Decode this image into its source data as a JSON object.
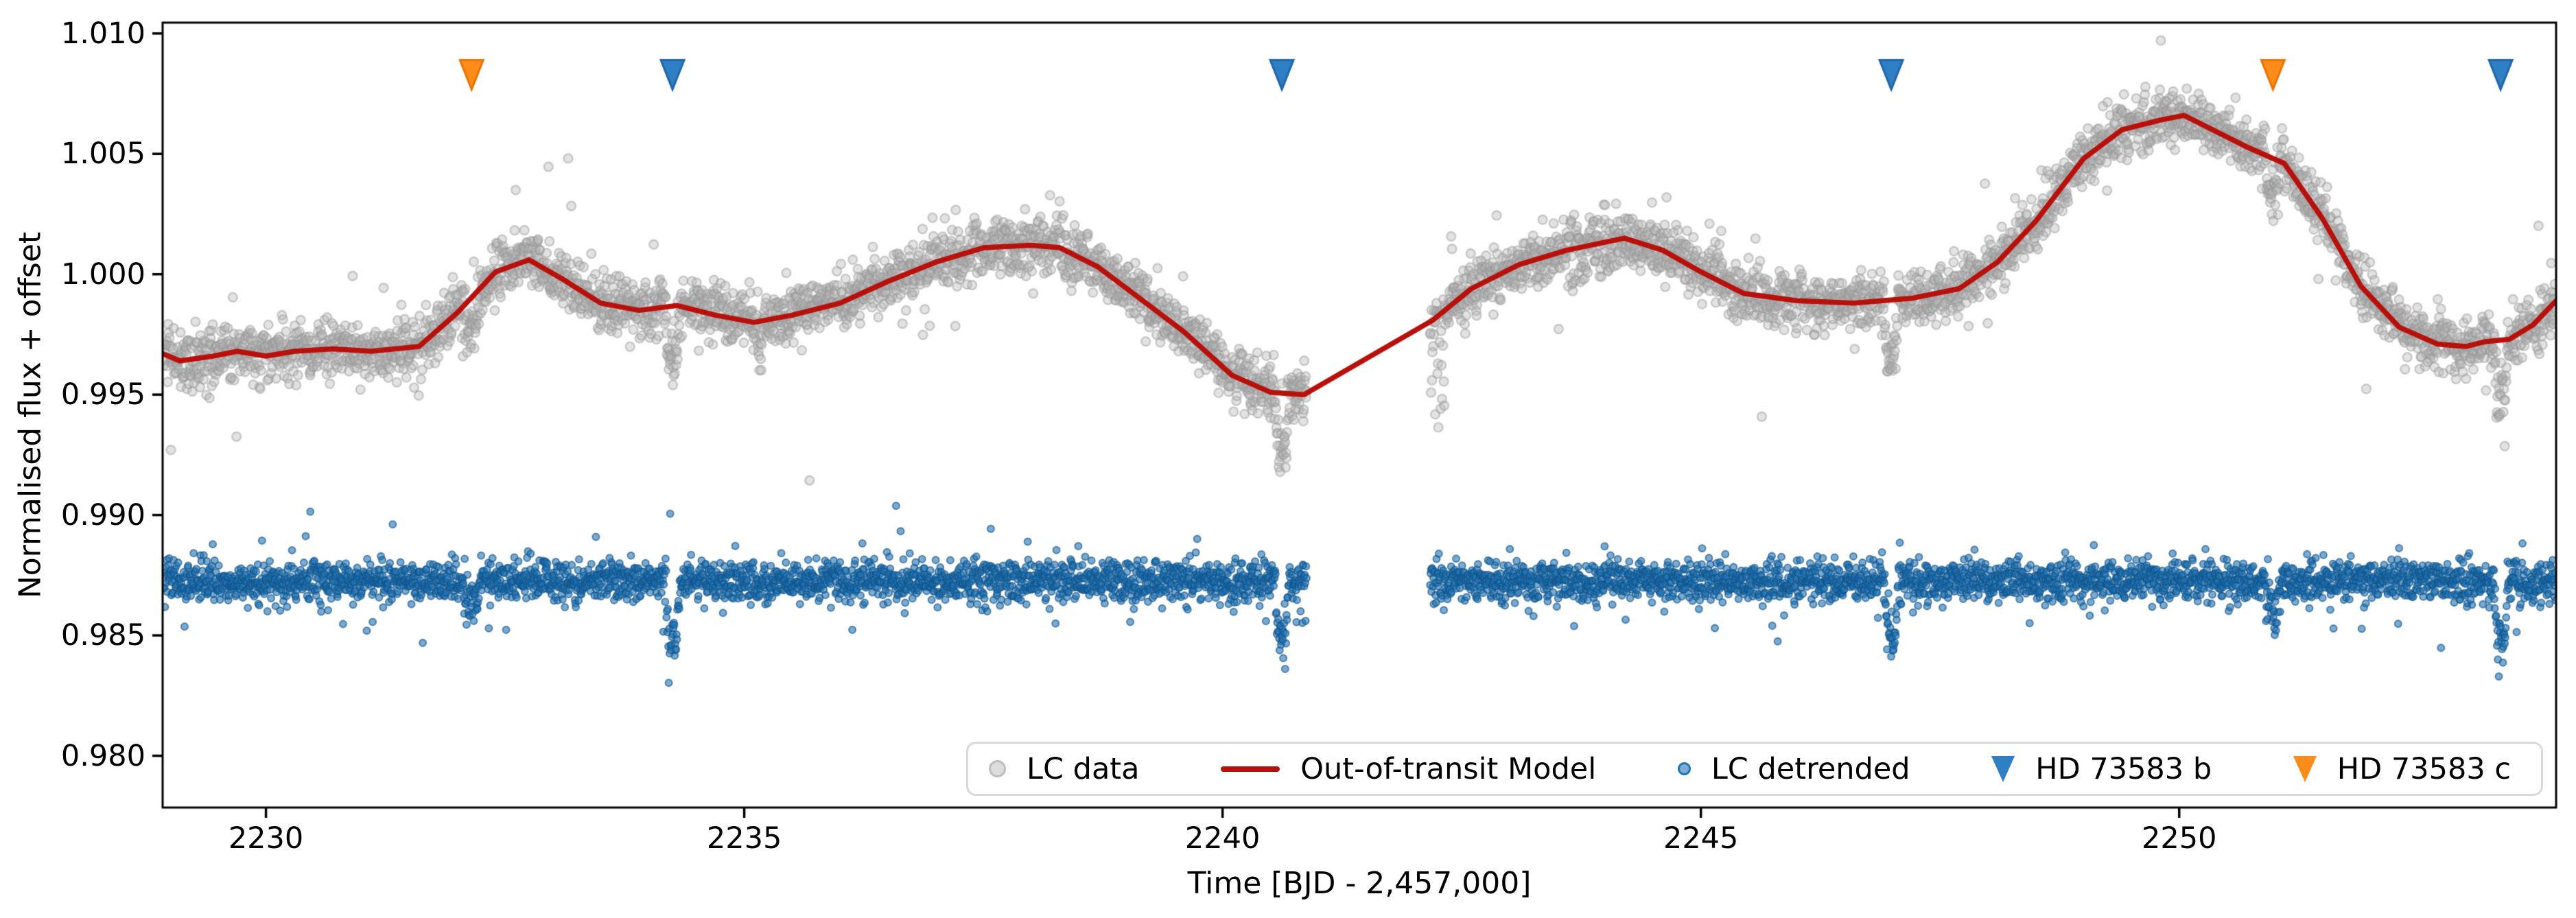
{
  "figure": {
    "background": "#ffffff",
    "description": "TESS-style light curve of HD 73583 with out-of-transit model, detrended light curve and transit markers"
  },
  "axes": {
    "x_label": "Time [BJD - 2,457,000]",
    "y_label": "Normalised flux + offset",
    "x_tick_labels": [
      "2230",
      "2235",
      "2240",
      "2245",
      "2250"
    ],
    "x_tick_values": [
      2230,
      2235,
      2240,
      2245,
      2250
    ],
    "y_tick_labels": [
      "1.010",
      "1.005",
      "1.000",
      "0.995",
      "0.990",
      "0.985",
      "0.980"
    ],
    "y_tick_values": [
      1.01,
      1.005,
      1.0,
      0.995,
      0.99,
      0.985,
      0.98
    ],
    "xlim": [
      2228.92,
      2253.94
    ],
    "ylim": [
      0.97785,
      1.01045
    ],
    "grid": false,
    "spine_color": "#000000"
  },
  "legend": {
    "position": "lower right inside axes",
    "items": [
      {
        "label": "LC data",
        "marker": "circle",
        "color": "#bdbdbd"
      },
      {
        "label": "Out-of-transit Model",
        "marker": "line",
        "color": "#b8100b"
      },
      {
        "label": "LC detrended",
        "marker": "circle",
        "color": "#1f77b4"
      },
      {
        "label": "HD 73583 b",
        "marker": "triangle-down",
        "color": "#2e7fc4"
      },
      {
        "label": "HD 73583 c",
        "marker": "triangle-down",
        "color": "#ff8b1a"
      }
    ]
  },
  "chart_data": {
    "type": "scatter",
    "title": "",
    "xlabel": "Time [BJD - 2,457,000]",
    "ylabel": "Normalised flux + offset",
    "xlim": [
      2228.92,
      2253.94
    ],
    "ylim": [
      0.97785,
      1.01045
    ],
    "data_gap": [
      2240.88,
      2242.17
    ],
    "segments": [
      [
        2228.93,
        2240.88
      ],
      [
        2242.17,
        2253.94
      ]
    ],
    "points_per_day": 210,
    "series": [
      {
        "name": "LC data",
        "type": "scatter",
        "marker": "circle",
        "fill": "rgba(178,178,178,0.38)",
        "edge": "rgba(150,150,150,0.45)",
        "radius": 6.5,
        "center": "model",
        "sigma": 0.00058
      },
      {
        "name": "Out-of-transit Model",
        "type": "line",
        "color": "#b8100b",
        "width": 7.5,
        "points": "model_points"
      },
      {
        "name": "LC detrended",
        "type": "scatter",
        "marker": "circle",
        "fill": "rgba(31,115,180,0.60)",
        "edge": "rgba(18,84,138,0.65)",
        "radius": 5,
        "center": 0.98725,
        "sigma": 0.00042
      },
      {
        "name": "HD 73583 b",
        "type": "markers",
        "marker": "triangle-down",
        "fill": "#2e7fc4",
        "edge": "#1f66a8",
        "x": [
          2234.25,
          2240.62,
          2246.99,
          2253.36
        ],
        "y": 1.0083
      },
      {
        "name": "HD 73583 c",
        "type": "markers",
        "marker": "triangle-down",
        "fill": "#ff8b1a",
        "edge": "#e87400",
        "x": [
          2232.15,
          2250.98
        ],
        "y": 1.0083
      }
    ],
    "transits": {
      "b_times": [
        2234.25,
        2240.62,
        2246.99,
        2253.36
      ],
      "b_depth_lc": 0.0024,
      "b_depth_detrended": 0.0022,
      "c_times": [
        2232.15,
        2250.98
      ],
      "c_depth_lc": 0.0013,
      "c_depth_detrended": 0.0011,
      "artifact_dip_time": 2235.17,
      "artifact_dip_depth": 0.0012
    },
    "model_points": [
      [
        2228.92,
        0.9967
      ],
      [
        2229.1,
        0.9964
      ],
      [
        2229.45,
        0.9966
      ],
      [
        2229.7,
        0.9968
      ],
      [
        2230.0,
        0.9966
      ],
      [
        2230.3,
        0.9968
      ],
      [
        2230.7,
        0.9969
      ],
      [
        2231.1,
        0.9968
      ],
      [
        2231.6,
        0.997
      ],
      [
        2232.0,
        0.9984
      ],
      [
        2232.4,
        1.0001
      ],
      [
        2232.75,
        1.0006
      ],
      [
        2233.1,
        0.9998
      ],
      [
        2233.5,
        0.9988
      ],
      [
        2233.9,
        0.9985
      ],
      [
        2234.3,
        0.9987
      ],
      [
        2234.7,
        0.9983
      ],
      [
        2235.1,
        0.998
      ],
      [
        2235.5,
        0.9983
      ],
      [
        2236.0,
        0.9988
      ],
      [
        2236.5,
        0.9997
      ],
      [
        2237.0,
        1.0005
      ],
      [
        2237.5,
        1.0011
      ],
      [
        2238.0,
        1.0012
      ],
      [
        2238.3,
        1.0011
      ],
      [
        2238.7,
        1.0003
      ],
      [
        2239.1,
        0.9991
      ],
      [
        2239.6,
        0.9976
      ],
      [
        2240.1,
        0.9958
      ],
      [
        2240.5,
        0.9951
      ],
      [
        2240.85,
        0.995
      ],
      [
        2242.2,
        0.9981
      ],
      [
        2242.6,
        0.9994
      ],
      [
        2243.1,
        1.0004
      ],
      [
        2243.6,
        1.001
      ],
      [
        2244.2,
        1.0015
      ],
      [
        2244.6,
        1.001
      ],
      [
        2245.0,
        1.0001
      ],
      [
        2245.45,
        0.9992
      ],
      [
        2246.0,
        0.9989
      ],
      [
        2246.6,
        0.9988
      ],
      [
        2247.2,
        0.999
      ],
      [
        2247.7,
        0.9994
      ],
      [
        2248.1,
        1.0005
      ],
      [
        2248.5,
        1.0022
      ],
      [
        2249.0,
        1.0048
      ],
      [
        2249.4,
        1.006
      ],
      [
        2249.8,
        1.0064
      ],
      [
        2250.05,
        1.0066
      ],
      [
        2250.3,
        1.0061
      ],
      [
        2250.7,
        1.0053
      ],
      [
        2251.1,
        1.0046
      ],
      [
        2251.5,
        1.0023
      ],
      [
        2251.9,
        0.9995
      ],
      [
        2252.3,
        0.9978
      ],
      [
        2252.7,
        0.9971
      ],
      [
        2253.0,
        0.997
      ],
      [
        2253.2,
        0.9972
      ],
      [
        2253.45,
        0.9973
      ],
      [
        2253.7,
        0.9979
      ],
      [
        2253.94,
        0.9989
      ]
    ]
  }
}
